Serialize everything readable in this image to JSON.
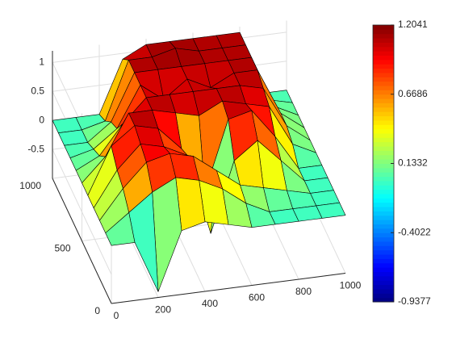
{
  "chart_data": {
    "type": "surface",
    "x": [
      0,
      100,
      200,
      300,
      400,
      500,
      600,
      700,
      800,
      900,
      1000
    ],
    "y": [
      0,
      100,
      200,
      300,
      400,
      500,
      600,
      700,
      800,
      900,
      1000
    ],
    "z": [
      [
        0,
        0,
        -0.9,
        0.1,
        0.2,
        0.1,
        0,
        0,
        0,
        0,
        0
      ],
      [
        0,
        0.3,
        0.6,
        0.8,
        0.7,
        0.5,
        0.2,
        0,
        0,
        0,
        0
      ],
      [
        0,
        0.5,
        0.9,
        1.0,
        0.9,
        0.6,
        0.3,
        0.2,
        0.1,
        0,
        0
      ],
      [
        0,
        0.6,
        1.0,
        0.9,
        0.7,
        -0.7,
        0.5,
        0.8,
        0.4,
        0,
        0
      ],
      [
        0,
        0.8,
        1.1,
        1.0,
        0.6,
        -0.2,
        1.0,
        1.1,
        0.6,
        0,
        0
      ],
      [
        0,
        0.4,
        1.1,
        1.1,
        1.0,
        0.9,
        1.1,
        1.0,
        0.9,
        0.2,
        0
      ],
      [
        0,
        0.2,
        0.7,
        1.1,
        1.1,
        1.1,
        1.1,
        1.1,
        1.0,
        0.3,
        0
      ],
      [
        0,
        0.1,
        0.4,
        1.1,
        0.8,
        1.1,
        0.9,
        1.1,
        1.1,
        0.3,
        0
      ],
      [
        0,
        0,
        0.3,
        1.1,
        1.1,
        1.1,
        1.1,
        1.1,
        1.1,
        0.2,
        0
      ],
      [
        0,
        0,
        0.1,
        1.1,
        1.1,
        1.2,
        1.1,
        1.1,
        1.1,
        0.1,
        0
      ],
      [
        0,
        0,
        0,
        0.9,
        1.1,
        1.1,
        1.1,
        1.1,
        1.1,
        0,
        0
      ]
    ],
    "xlim": [
      0,
      1000
    ],
    "xticks": [
      0,
      200,
      400,
      600,
      800,
      1000
    ],
    "ylim": [
      0,
      1000
    ],
    "yticks": [
      0,
      500,
      1000
    ],
    "zlim": [
      -1,
      1.2
    ],
    "zticks": [
      -0.5,
      0,
      0.5,
      1
    ],
    "grid": true,
    "colormap": "jet",
    "clim": [
      -0.9377,
      1.2041
    ],
    "colorbar_ticks": [
      -0.9377,
      -0.4022,
      0.1332,
      0.6686,
      1.2041
    ]
  }
}
